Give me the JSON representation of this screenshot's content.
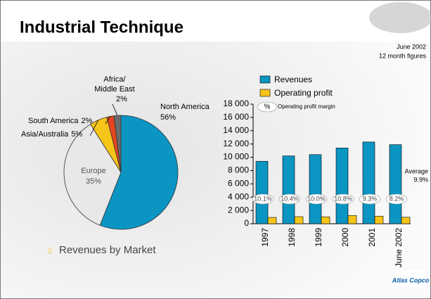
{
  "header": {
    "title": "Industrial Technique",
    "date": "June 2002",
    "period": "12 month figures"
  },
  "caption": "Revenues by Market",
  "logo": "Atlas Copco",
  "chart_data": [
    {
      "type": "pie",
      "categories": [
        "North America",
        "Europe",
        "Asia/Australia",
        "South America",
        "Africa/ Middle East"
      ],
      "values": [
        56,
        35,
        5,
        2,
        2
      ],
      "value_labels": [
        "56%",
        "35%",
        "5%",
        "2%",
        "2%"
      ],
      "colors": [
        "#0a95c3",
        "#e8e8e8",
        "#f7c41a",
        "#e5461f",
        "#6b6b6b"
      ]
    },
    {
      "type": "bar",
      "categories": [
        "1997",
        "1998",
        "1999",
        "2000",
        "2001",
        "June 2002"
      ],
      "series": [
        {
          "name": "Revenues",
          "color": "#0a95c3",
          "values": [
            9400,
            10200,
            10400,
            11400,
            12300,
            11900
          ]
        },
        {
          "name": "Operating profit",
          "color": "#f7c41a",
          "values": [
            950,
            1060,
            1040,
            1230,
            1140,
            975
          ]
        },
        {
          "name": "Operating profit margin",
          "symbol": "%",
          "values": [
            10.1,
            10.4,
            10.0,
            10.8,
            9.3,
            8.2
          ],
          "value_labels": [
            "10.1%",
            "10.4%",
            "10.0%",
            "10.8%",
            "9.3%",
            "8.2%"
          ]
        }
      ],
      "annotation": {
        "label": "Average",
        "value": 9.9,
        "value_label": "9.9%"
      },
      "ylim": [
        0,
        18000
      ],
      "yticks": [
        0,
        {
          "value": 2000,
          "label": "2 000"
        },
        {
          "value": 4000,
          "label": "4 000"
        },
        {
          "value": 6000,
          "label": "6 000"
        },
        {
          "value": 8000,
          "label": "8 000"
        },
        {
          "value": 10000,
          "label": "10 000"
        },
        {
          "value": 12000,
          "label": "12 000"
        },
        {
          "value": 14000,
          "label": "14 000"
        },
        {
          "value": 16000,
          "label": "16 000"
        },
        {
          "value": 18000,
          "label": "18 000"
        }
      ]
    }
  ]
}
